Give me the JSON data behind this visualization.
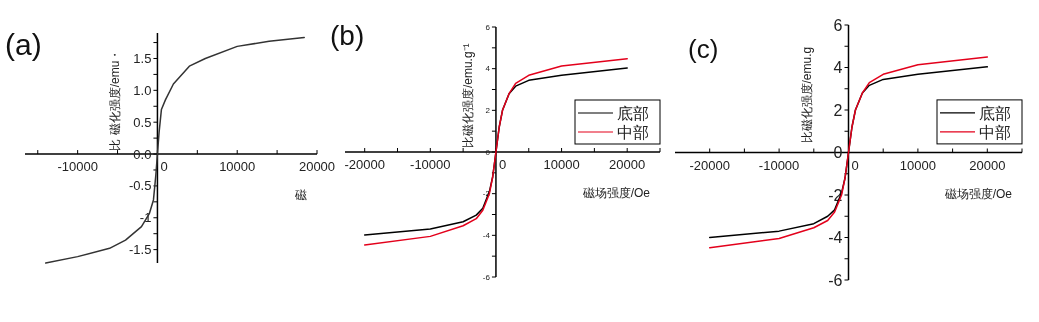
{
  "chart_data": [
    {
      "type": "line",
      "title": "(a)",
      "xlabel": "磁",
      "ylabel": "比 磁化强度/emu・",
      "xlim": [
        -16600,
        20000
      ],
      "ylim": [
        -1.71,
        1.9
      ],
      "xticks": [
        {
          "value": -15000,
          "label": null
        },
        -10000,
        {
          "value": -5000,
          "label": null
        },
        0,
        {
          "value": 5000,
          "label": null
        },
        10000,
        {
          "value": 15000,
          "label": null
        },
        20000
      ],
      "yticks": [
        -1.5,
        {
          "value": -1.25,
          "label": null
        },
        -1.0,
        {
          "value": -0.75,
          "label": null
        },
        -0.5,
        {
          "value": -0.25,
          "label": null
        },
        {
          "value": 0,
          "label": "0.0"
        },
        {
          "value": 0.25,
          "label": null
        },
        0.5,
        {
          "value": 0.75,
          "label": null
        },
        {
          "value": 1.0,
          "label": "1.0"
        },
        {
          "value": 1.25,
          "label": null
        },
        1.5,
        {
          "value": 1.75,
          "label": null
        }
      ],
      "series": [
        {
          "color": "#333333",
          "x": [
            -14000,
            -10000,
            -6000,
            -4000,
            -2000,
            -1000,
            -500,
            -200,
            0,
            200,
            500,
            1000,
            2000,
            4000,
            6000,
            10000,
            14000,
            18400
          ],
          "values": [
            -1.71,
            -1.61,
            -1.48,
            -1.35,
            -1.14,
            -0.93,
            -0.72,
            -0.33,
            0,
            0.33,
            0.7,
            0.85,
            1.1,
            1.38,
            1.5,
            1.69,
            1.77,
            1.83
          ]
        }
      ]
    },
    {
      "type": "line",
      "title": "(b)",
      "xlabel": "磁场强度/Oe",
      "ylabel": "比磁化强度/emu.g⁻¹",
      "xlim": [
        -23000,
        25000
      ],
      "ylim": [
        -6,
        6
      ],
      "xticks": [
        -20000,
        {
          "value": -15000,
          "label": null
        },
        -10000,
        {
          "value": -5000,
          "label": null
        },
        0,
        {
          "value": 5000,
          "label": null
        },
        10000,
        {
          "value": 15000,
          "label": null
        },
        20000,
        {
          "value": 25000,
          "label": null
        }
      ],
      "yticks": [
        -6,
        {
          "value": -5,
          "label": null
        },
        -4,
        {
          "value": -3,
          "label": null
        },
        -2,
        {
          "value": -1,
          "label": null
        },
        0,
        {
          "value": 1,
          "label": null
        },
        2,
        {
          "value": 3,
          "label": null
        },
        4,
        {
          "value": 5,
          "label": null
        },
        6
      ],
      "x": [
        -20000,
        -10000,
        -5000,
        -3000,
        -2000,
        -1000,
        -500,
        0,
        500,
        1000,
        2000,
        3000,
        5000,
        10000,
        20000
      ],
      "legend": "right",
      "series": [
        {
          "name": "底部",
          "color": "#000000",
          "values": [
            -3.98,
            -3.7,
            -3.35,
            -3.03,
            -2.7,
            -1.9,
            -1.2,
            0,
            1.2,
            2.0,
            2.8,
            3.16,
            3.44,
            3.68,
            4.03
          ]
        },
        {
          "name": "中部",
          "color": "#e3001b",
          "values": [
            -4.46,
            -4.05,
            -3.54,
            -3.2,
            -2.8,
            -2.0,
            -1.2,
            0,
            1.2,
            2.0,
            2.8,
            3.29,
            3.68,
            4.13,
            4.48
          ]
        }
      ]
    },
    {
      "type": "line",
      "title": "(c)",
      "xlabel": "磁场强度/Oe",
      "ylabel": "比磁化强度/emu.g",
      "xlim": [
        -25000,
        25000
      ],
      "ylim": [
        -6,
        6
      ],
      "xticks": [
        -20000,
        {
          "value": -15000,
          "label": null
        },
        -10000,
        {
          "value": -5000,
          "label": null
        },
        0,
        {
          "value": 5000,
          "label": null
        },
        10000,
        {
          "value": 15000,
          "label": null
        },
        20000,
        {
          "value": 25000,
          "label": null
        }
      ],
      "yticks": [
        -6,
        {
          "value": -5,
          "label": null
        },
        -4,
        {
          "value": -3,
          "label": null
        },
        -2,
        {
          "value": -1,
          "label": null
        },
        0,
        {
          "value": 1,
          "label": null
        },
        2,
        {
          "value": 3,
          "label": null
        },
        4,
        {
          "value": 5,
          "label": null
        },
        6
      ],
      "x": [
        -20000,
        -10000,
        -5000,
        -3000,
        -2000,
        -1000,
        -500,
        0,
        500,
        1000,
        2000,
        3000,
        5000,
        10000,
        20000
      ],
      "legend": "right",
      "series": [
        {
          "name": "底部",
          "color": "#000000",
          "values": [
            -4.0,
            -3.7,
            -3.35,
            -3.0,
            -2.7,
            -1.9,
            -1.2,
            0,
            1.2,
            2.0,
            2.8,
            3.16,
            3.44,
            3.68,
            4.03
          ]
        },
        {
          "name": "中部",
          "color": "#e3001b",
          "values": [
            -4.48,
            -4.05,
            -3.54,
            -3.2,
            -2.8,
            -2.0,
            -1.2,
            0,
            1.2,
            2.0,
            2.8,
            3.29,
            3.68,
            4.13,
            4.5
          ]
        }
      ]
    }
  ]
}
